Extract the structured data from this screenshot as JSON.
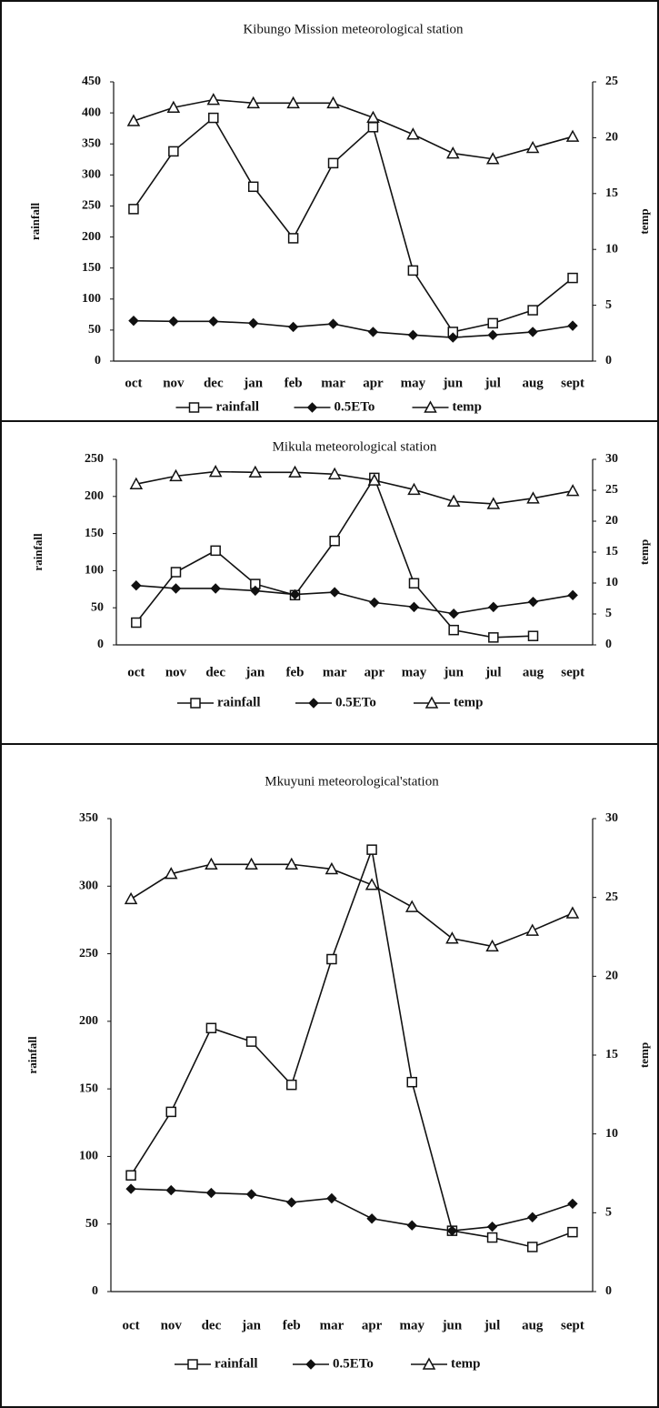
{
  "chart_data": [
    {
      "type": "line",
      "title": "Kibungo Mission meteorological station",
      "categories": [
        "oct",
        "nov",
        "dec",
        "jan",
        "feb",
        "mar",
        "apr",
        "may",
        "jun",
        "jul",
        "aug",
        "sept"
      ],
      "ylabel": "rainfall",
      "y2label": "temp",
      "ylim": [
        0,
        450
      ],
      "yticks": [
        0,
        50,
        100,
        150,
        200,
        250,
        300,
        350,
        400,
        450
      ],
      "y2lim": [
        0,
        25
      ],
      "y2ticks": [
        0,
        5,
        10,
        15,
        20,
        25
      ],
      "legend": "bottom",
      "series": [
        {
          "name": "rainfall",
          "color": "#111",
          "marker": "square",
          "values": [
            245,
            338,
            392,
            281,
            198,
            319,
            377,
            146,
            47,
            61,
            82,
            134
          ]
        },
        {
          "name": "0.5ETo",
          "color": "#111",
          "marker": "diamond",
          "values": [
            65,
            64,
            64,
            61,
            55,
            60,
            47,
            42,
            38,
            42,
            47,
            57
          ]
        },
        {
          "name": "temp",
          "color": "#111",
          "marker": "triangle",
          "axis": "y2",
          "values": [
            21.5,
            22.7,
            23.4,
            23.1,
            23.1,
            23.1,
            21.8,
            20.3,
            18.6,
            18.1,
            19.1,
            20.1
          ]
        }
      ]
    },
    {
      "type": "line",
      "title": "Mikula meteorological station",
      "categories": [
        "oct",
        "nov",
        "dec",
        "jan",
        "feb",
        "mar",
        "apr",
        "may",
        "jun",
        "jul",
        "aug",
        "sept"
      ],
      "ylabel": "rainfall",
      "y2label": "temp",
      "ylim": [
        0,
        250
      ],
      "yticks": [
        0,
        50,
        100,
        150,
        200,
        250
      ],
      "y2lim": [
        0,
        30
      ],
      "y2ticks": [
        0,
        5,
        10,
        15,
        20,
        25,
        30
      ],
      "legend": "bottom",
      "series": [
        {
          "name": "rainfall",
          "color": "#111",
          "marker": "square",
          "values": [
            30,
            98,
            127,
            82,
            67,
            140,
            225,
            83,
            20,
            10,
            12,
            null
          ]
        },
        {
          "name": "0.5ETo",
          "color": "#111",
          "marker": "diamond",
          "values": [
            80,
            76,
            76,
            73,
            68,
            71,
            57,
            51,
            42,
            51,
            58,
            67
          ]
        },
        {
          "name": "temp",
          "color": "#111",
          "marker": "triangle",
          "axis": "y2",
          "values": [
            26,
            27.3,
            28,
            27.9,
            27.9,
            27.6,
            26.6,
            25.1,
            23.2,
            22.8,
            23.7,
            24.9
          ]
        }
      ]
    },
    {
      "type": "line",
      "title": "Mkuyuni meteorological'station",
      "categories": [
        "oct",
        "nov",
        "dec",
        "jan",
        "feb",
        "mar",
        "apr",
        "may",
        "jun",
        "jul",
        "aug",
        "sept"
      ],
      "ylabel": "rainfall",
      "y2label": "temp",
      "ylim": [
        0,
        350
      ],
      "yticks": [
        0,
        50,
        100,
        150,
        200,
        250,
        300,
        350
      ],
      "y2lim": [
        0,
        30
      ],
      "y2ticks": [
        0,
        5,
        10,
        15,
        20,
        25,
        30
      ],
      "legend": "bottom",
      "series": [
        {
          "name": "rainfall",
          "color": "#111",
          "marker": "square",
          "values": [
            86,
            133,
            195,
            185,
            153,
            246,
            327,
            155,
            45,
            40,
            33,
            44
          ]
        },
        {
          "name": "0.5ETo",
          "color": "#111",
          "marker": "diamond",
          "values": [
            76,
            75,
            73,
            72,
            66,
            69,
            54,
            49,
            45,
            48,
            55,
            65
          ]
        },
        {
          "name": "temp",
          "color": "#111",
          "marker": "triangle",
          "axis": "y2",
          "values": [
            24.9,
            26.5,
            27.1,
            27.1,
            27.1,
            26.8,
            25.8,
            24.4,
            22.4,
            21.9,
            22.9,
            24.0
          ]
        }
      ]
    }
  ]
}
